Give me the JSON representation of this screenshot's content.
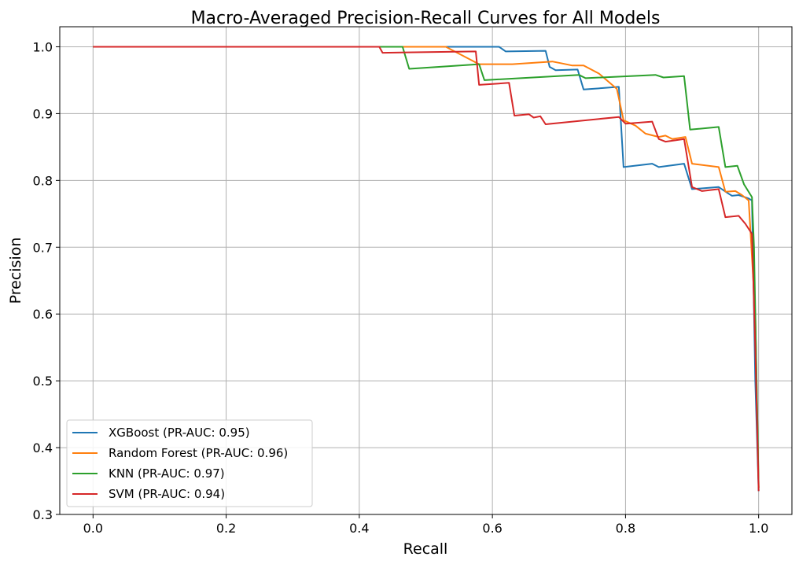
{
  "chart_data": {
    "type": "line",
    "title": "Macro-Averaged Precision-Recall Curves for All Models",
    "xlabel": "Recall",
    "ylabel": "Precision",
    "xlim": [
      -0.05,
      1.05
    ],
    "ylim": [
      0.3,
      1.03
    ],
    "xticks": [
      0.0,
      0.2,
      0.4,
      0.6,
      0.8,
      1.0
    ],
    "yticks": [
      0.3,
      0.4,
      0.5,
      0.6,
      0.7,
      0.8,
      0.9,
      1.0
    ],
    "grid": true,
    "legend_position": "lower-left",
    "series": [
      {
        "name": "XGBoost (PR-AUC: 0.95)",
        "color": "#1f77b4",
        "points": [
          [
            0.0,
            1.0
          ],
          [
            0.6,
            1.0
          ],
          [
            0.61,
            1.0
          ],
          [
            0.62,
            0.993
          ],
          [
            0.68,
            0.994
          ],
          [
            0.686,
            0.97
          ],
          [
            0.695,
            0.965
          ],
          [
            0.728,
            0.966
          ],
          [
            0.737,
            0.936
          ],
          [
            0.79,
            0.94
          ],
          [
            0.797,
            0.82
          ],
          [
            0.84,
            0.825
          ],
          [
            0.85,
            0.82
          ],
          [
            0.888,
            0.825
          ],
          [
            0.9,
            0.787
          ],
          [
            0.94,
            0.79
          ],
          [
            0.955,
            0.78
          ],
          [
            0.96,
            0.777
          ],
          [
            0.97,
            0.778
          ],
          [
            0.985,
            0.773
          ],
          [
            0.99,
            0.77
          ],
          [
            0.995,
            0.5
          ],
          [
            1.0,
            0.335
          ]
        ]
      },
      {
        "name": "Random Forest (PR-AUC: 0.96)",
        "color": "#ff7f0e",
        "points": [
          [
            0.0,
            1.0
          ],
          [
            0.53,
            1.0
          ],
          [
            0.58,
            0.974
          ],
          [
            0.63,
            0.974
          ],
          [
            0.69,
            0.978
          ],
          [
            0.705,
            0.975
          ],
          [
            0.72,
            0.972
          ],
          [
            0.737,
            0.972
          ],
          [
            0.76,
            0.96
          ],
          [
            0.787,
            0.937
          ],
          [
            0.797,
            0.89
          ],
          [
            0.815,
            0.882
          ],
          [
            0.83,
            0.87
          ],
          [
            0.85,
            0.865
          ],
          [
            0.86,
            0.867
          ],
          [
            0.87,
            0.862
          ],
          [
            0.89,
            0.865
          ],
          [
            0.9,
            0.825
          ],
          [
            0.94,
            0.82
          ],
          [
            0.95,
            0.783
          ],
          [
            0.965,
            0.784
          ],
          [
            0.975,
            0.778
          ],
          [
            0.985,
            0.77
          ],
          [
            0.995,
            0.6
          ],
          [
            1.0,
            0.34
          ]
        ]
      },
      {
        "name": "KNN (PR-AUC: 0.97)",
        "color": "#2ca02c",
        "points": [
          [
            0.0,
            1.0
          ],
          [
            0.465,
            1.0
          ],
          [
            0.475,
            0.967
          ],
          [
            0.58,
            0.974
          ],
          [
            0.588,
            0.95
          ],
          [
            0.73,
            0.958
          ],
          [
            0.74,
            0.953
          ],
          [
            0.845,
            0.958
          ],
          [
            0.857,
            0.954
          ],
          [
            0.888,
            0.956
          ],
          [
            0.897,
            0.876
          ],
          [
            0.94,
            0.88
          ],
          [
            0.95,
            0.82
          ],
          [
            0.968,
            0.822
          ],
          [
            0.978,
            0.794
          ],
          [
            0.99,
            0.775
          ],
          [
            0.993,
            0.7
          ],
          [
            0.997,
            0.5
          ],
          [
            1.0,
            0.34
          ]
        ]
      },
      {
        "name": "SVM (PR-AUC: 0.94)",
        "color": "#d62728",
        "points": [
          [
            0.0,
            1.0
          ],
          [
            0.43,
            1.0
          ],
          [
            0.435,
            0.991
          ],
          [
            0.575,
            0.993
          ],
          [
            0.58,
            0.943
          ],
          [
            0.625,
            0.946
          ],
          [
            0.633,
            0.897
          ],
          [
            0.655,
            0.899
          ],
          [
            0.662,
            0.894
          ],
          [
            0.672,
            0.896
          ],
          [
            0.68,
            0.884
          ],
          [
            0.79,
            0.895
          ],
          [
            0.8,
            0.885
          ],
          [
            0.84,
            0.888
          ],
          [
            0.85,
            0.862
          ],
          [
            0.86,
            0.858
          ],
          [
            0.888,
            0.862
          ],
          [
            0.9,
            0.79
          ],
          [
            0.915,
            0.784
          ],
          [
            0.94,
            0.787
          ],
          [
            0.95,
            0.745
          ],
          [
            0.97,
            0.747
          ],
          [
            0.98,
            0.735
          ],
          [
            0.99,
            0.72
          ],
          [
            0.995,
            0.55
          ],
          [
            1.0,
            0.335
          ]
        ]
      }
    ]
  }
}
